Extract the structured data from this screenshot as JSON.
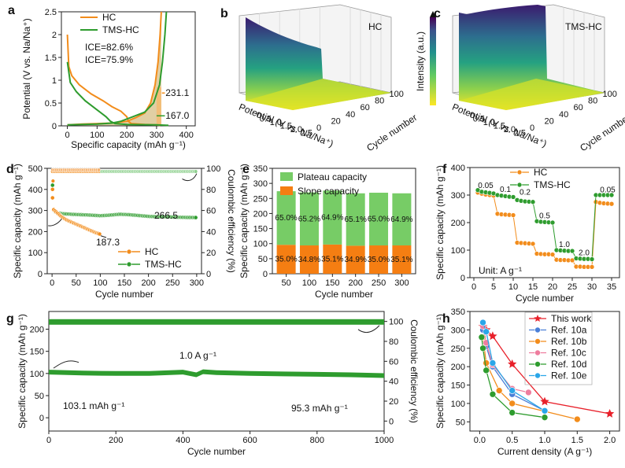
{
  "colors": {
    "orange": "#f28c1b",
    "green": "#2e9c2e",
    "light_green": "#77cc66",
    "orange_bar": "#f57e12"
  },
  "chart_data": [
    {
      "id": "a",
      "panel_label": "a",
      "type": "line",
      "xlabel": "Specific capacity (mAh g⁻¹)",
      "ylabel": "Potential (V vs. Na/Na⁺)",
      "xlim": [
        -20,
        430
      ],
      "ylim": [
        0,
        2.5
      ],
      "xticks": [
        0,
        100,
        200,
        300,
        400
      ],
      "yticks": [
        0.0,
        0.5,
        1.0,
        1.5,
        2.0,
        2.5
      ],
      "series": [
        {
          "name": "HC",
          "color": "#f28c1b",
          "discharge": [
            [
              0,
              2.0
            ],
            [
              5,
              1.3
            ],
            [
              15,
              1.1
            ],
            [
              40,
              0.9
            ],
            [
              80,
              0.7
            ],
            [
              120,
              0.55
            ],
            [
              150,
              0.42
            ],
            [
              180,
              0.32
            ],
            [
              200,
              0.2
            ],
            [
              205,
              0.1
            ],
            [
              215,
              0.05
            ],
            [
              260,
              0.03
            ],
            [
              300,
              0.02
            ],
            [
              312,
              0.01
            ]
          ],
          "charge": [
            [
              0,
              0.02
            ],
            [
              50,
              0.04
            ],
            [
              150,
              0.06
            ],
            [
              200,
              0.1
            ],
            [
              230,
              0.18
            ],
            [
              260,
              0.28
            ],
            [
              280,
              0.5
            ],
            [
              295,
              0.9
            ],
            [
              305,
              1.4
            ],
            [
              312,
              2.0
            ],
            [
              316,
              2.5
            ]
          ]
        },
        {
          "name": "TMS-HC",
          "color": "#2e9c2e",
          "discharge": [
            [
              0,
              1.4
            ],
            [
              10,
              0.95
            ],
            [
              30,
              0.75
            ],
            [
              60,
              0.55
            ],
            [
              100,
              0.35
            ],
            [
              130,
              0.2
            ],
            [
              145,
              0.1
            ],
            [
              160,
              0.05
            ],
            [
              200,
              0.03
            ],
            [
              300,
              0.02
            ],
            [
              340,
              0.01
            ]
          ],
          "charge": [
            [
              0,
              0.02
            ],
            [
              100,
              0.04
            ],
            [
              150,
              0.06
            ],
            [
              180,
              0.1
            ],
            [
              220,
              0.2
            ],
            [
              260,
              0.3
            ],
            [
              290,
              0.5
            ],
            [
              310,
              0.9
            ],
            [
              320,
              1.4
            ],
            [
              328,
              2.0
            ],
            [
              333,
              2.5
            ]
          ]
        }
      ],
      "annotations": [
        "ICE=82.6%",
        "ICE=75.9%",
        "231.1",
        "167.0"
      ]
    },
    {
      "id": "b",
      "panel_label": "b",
      "type": "surface3d",
      "label": "HC",
      "xlabel": "Potential (V vs. Na/Na⁺)",
      "ylabel": "Cycle number",
      "zlabel": "Intensity (a.u.)",
      "xticks": [
        "0",
        "0.5",
        "1.0",
        "1.5",
        "2.0",
        "2.5"
      ],
      "yticks": [
        "0",
        "20",
        "40",
        "60",
        "80",
        "100"
      ]
    },
    {
      "id": "c",
      "panel_label": "c",
      "type": "surface3d",
      "label": "TMS-HC",
      "xlabel": "Potential (V vs. Na/Na⁺)",
      "ylabel": "Cycle number",
      "zlabel": "Intensity (a.u.)",
      "xticks": [
        "0",
        "0.5",
        "1.0",
        "1.5",
        "2.0",
        "2.5"
      ],
      "yticks": [
        "0",
        "20",
        "40",
        "60",
        "80",
        "100"
      ]
    },
    {
      "id": "d",
      "panel_label": "d",
      "type": "scatter",
      "xlabel": "Cycle number",
      "ylabel": "Specific capacity (mAh g⁻¹)",
      "y2label": "Coulombic efficiency (%)",
      "xlim": [
        -10,
        310
      ],
      "ylim": [
        0,
        500
      ],
      "y2lim": [
        0,
        100
      ],
      "xticks": [
        0,
        50,
        100,
        150,
        200,
        250,
        300
      ],
      "yticks": [
        0,
        100,
        200,
        300,
        400,
        500
      ],
      "y2ticks": [
        0,
        20,
        40,
        60,
        80,
        100
      ],
      "series": [
        {
          "name": "HC",
          "color": "#f28c1b",
          "x": [
            1,
            2,
            3,
            5,
            10,
            20,
            30,
            40,
            50,
            60,
            70,
            80,
            90,
            100
          ],
          "y": [
            360,
            320,
            305,
            300,
            290,
            270,
            255,
            245,
            235,
            225,
            215,
            205,
            195,
            187.3
          ],
          "ce_x": [
            1,
            2,
            5,
            20,
            50,
            100
          ],
          "ce": [
            80,
            90,
            96,
            97,
            98,
            98
          ]
        },
        {
          "name": "TMS-HC",
          "color": "#2e9c2e",
          "x": [
            1,
            2,
            3,
            5,
            10,
            20,
            40,
            60,
            80,
            100,
            120,
            140,
            160,
            180,
            200,
            220,
            240,
            260,
            280,
            300
          ],
          "y": [
            420,
            330,
            305,
            295,
            290,
            285,
            282,
            280,
            278,
            275,
            278,
            282,
            280,
            276,
            272,
            270,
            270,
            268,
            267,
            266.5
          ],
          "ce_x": [
            1,
            2,
            5,
            20,
            50,
            100,
            150,
            200,
            250,
            300
          ],
          "ce": [
            82,
            92,
            96,
            97,
            97,
            97,
            97,
            97,
            97,
            97
          ]
        }
      ],
      "annotations": [
        "187.3",
        "266.5"
      ]
    },
    {
      "id": "e",
      "panel_label": "e",
      "type": "bar",
      "xlabel": "Cycle number",
      "ylabel": "Specific capacity (mAh g⁻¹)",
      "ylim": [
        0,
        350
      ],
      "yticks": [
        0,
        50,
        100,
        150,
        200,
        250,
        300,
        350
      ],
      "categories": [
        "50",
        "100",
        "150",
        "200",
        "250",
        "300"
      ],
      "series": [
        {
          "name": "Slope capacity",
          "color": "#f57e12",
          "values": [
            96,
            94,
            97,
            93,
            94,
            94
          ],
          "pct_labels": [
            "35.0%",
            "34.8%",
            "35.1%",
            "34.9%",
            "35.0%",
            "35.1%"
          ]
        },
        {
          "name": "Plateau capacity",
          "color": "#77cc66",
          "values": [
            178,
            176,
            179,
            174,
            175,
            173
          ],
          "pct_labels": [
            "65.0%",
            "65.2%",
            "64.9%",
            "65.1%",
            "65.0%",
            "64.9%"
          ]
        }
      ]
    },
    {
      "id": "f",
      "panel_label": "f",
      "type": "scatter",
      "xlabel": "Cycle number",
      "ylabel": "Specific capacity (mAh g⁻¹)",
      "xlim": [
        -1,
        37
      ],
      "ylim": [
        0,
        400
      ],
      "xticks": [
        0,
        5,
        10,
        15,
        20,
        25,
        30,
        35
      ],
      "yticks": [
        0,
        100,
        200,
        300,
        400
      ],
      "series": [
        {
          "name": "HC",
          "color": "#f28c1b",
          "values": [
            309,
            305,
            302,
            300,
            298,
            232,
            230,
            229,
            228,
            227,
            127,
            126,
            125,
            124,
            123,
            87,
            86,
            85,
            85,
            84,
            65,
            64,
            64,
            63,
            63,
            40,
            40,
            39,
            39,
            39,
            275,
            272,
            270,
            269,
            268
          ]
        },
        {
          "name": "TMS-HC",
          "color": "#2e9c2e",
          "values": [
            318,
            312,
            310,
            308,
            306,
            300,
            298,
            296,
            294,
            293,
            282,
            279,
            277,
            276,
            275,
            205,
            203,
            202,
            201,
            200,
            100,
            99,
            98,
            97,
            97,
            70,
            69,
            68,
            68,
            67,
            300,
            300,
            300,
            300,
            300
          ]
        }
      ],
      "rate_labels": [
        "0.05",
        "0.1",
        "0.2",
        "0.5",
        "1.0",
        "2.0",
        "0.05"
      ],
      "unit_label": "Unit: A g⁻¹"
    },
    {
      "id": "g",
      "panel_label": "g",
      "type": "scatter",
      "xlabel": "Cycle number",
      "ylabel": "Specific capacity (mAh g⁻¹)",
      "y2label": "Coulombic efficiency (%)",
      "xlim": [
        0,
        1000
      ],
      "ylim": [
        -30,
        240
      ],
      "y2lim": [
        -10,
        110
      ],
      "xticks": [
        0,
        200,
        400,
        600,
        800,
        1000
      ],
      "yticks": [
        0,
        50,
        100,
        150,
        200
      ],
      "y2ticks": [
        0,
        20,
        40,
        60,
        80,
        100
      ],
      "series": [
        {
          "name": "capacity",
          "color": "#2e9c2e",
          "x": [
            0,
            100,
            200,
            300,
            400,
            440,
            460,
            500,
            600,
            700,
            800,
            900,
            1000
          ],
          "y": [
            103.1,
            101,
            100,
            100,
            103,
            97,
            104,
            102,
            100,
            99,
            98,
            97,
            95.3
          ]
        },
        {
          "name": "coulombic efficiency",
          "color": "#2e9c2e",
          "x": [
            0,
            1000
          ],
          "y": [
            99.5,
            99.5
          ]
        }
      ],
      "annotations": [
        "1.0 A g⁻¹",
        "103.1 mAh g⁻¹",
        "95.3 mAh g⁻¹"
      ]
    },
    {
      "id": "h",
      "panel_label": "h",
      "type": "line",
      "xlabel": "Current density (A g⁻¹)",
      "ylabel": "Specific capacity (mAh g⁻¹)",
      "xlim": [
        -0.15,
        2.15
      ],
      "ylim": [
        25,
        350
      ],
      "xticks": [
        "0.0",
        "0.5",
        "1.0",
        "1.5",
        "2.0"
      ],
      "yticks": [
        50,
        100,
        150,
        200,
        250,
        300,
        350
      ],
      "series": [
        {
          "name": "This work",
          "color": "#e8202a",
          "marker": "star",
          "x": [
            0.05,
            0.1,
            0.2,
            0.5,
            1.0,
            2.0
          ],
          "y": [
            309,
            300,
            283,
            207,
            105,
            72
          ]
        },
        {
          "name": "Ref. 10a",
          "color": "#4a7fd8",
          "marker": "circle",
          "x": [
            0.05,
            0.1,
            0.2,
            0.5,
            1.0
          ],
          "y": [
            300,
            255,
            200,
            125,
            80
          ]
        },
        {
          "name": "Ref. 10b",
          "color": "#f28c1b",
          "marker": "circle",
          "x": [
            0.05,
            0.1,
            0.3,
            0.5,
            1.5
          ],
          "y": [
            280,
            210,
            135,
            100,
            57
          ]
        },
        {
          "name": "Ref. 10c",
          "color": "#ee7d9e",
          "marker": "circle",
          "x": [
            0.05,
            0.1,
            0.2,
            0.5,
            0.75
          ],
          "y": [
            310,
            265,
            205,
            140,
            130
          ]
        },
        {
          "name": "Ref. 10d",
          "color": "#2e9c2e",
          "marker": "circle",
          "x": [
            0.03,
            0.05,
            0.1,
            0.2,
            0.5,
            1.0
          ],
          "y": [
            280,
            250,
            190,
            125,
            75,
            62
          ]
        },
        {
          "name": "Ref. 10e",
          "color": "#2aa6e8",
          "marker": "circle",
          "x": [
            0.05,
            0.1,
            0.2,
            0.5,
            1.0
          ],
          "y": [
            320,
            295,
            210,
            135,
            80
          ]
        }
      ]
    }
  ]
}
